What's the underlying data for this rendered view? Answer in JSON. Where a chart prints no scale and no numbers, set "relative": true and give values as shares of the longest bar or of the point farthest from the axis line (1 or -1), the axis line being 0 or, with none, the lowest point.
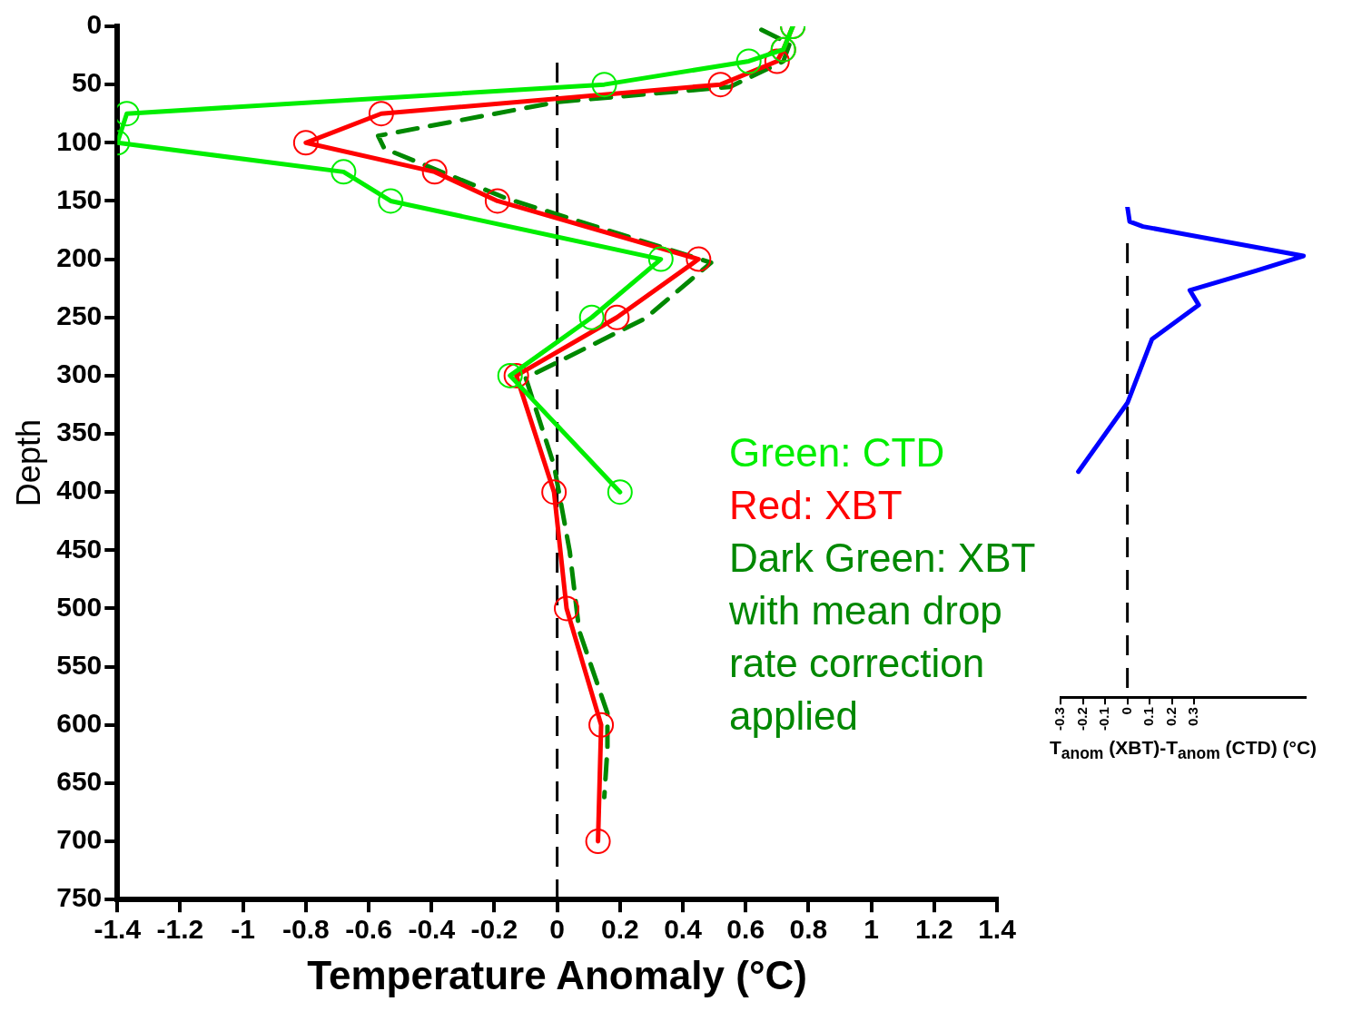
{
  "chart_data": [
    {
      "type": "line",
      "xlabel": "Temperature Anomaly (°C)",
      "ylabel": "Depth",
      "xlim": [
        -1.4,
        1.4
      ],
      "xticks": [
        -1.4,
        -1.2,
        -1,
        -0.8,
        -0.6,
        -0.4,
        -0.2,
        0,
        0.2,
        0.4,
        0.6,
        0.8,
        1,
        1.2,
        1.4
      ],
      "ylim": [
        750,
        0
      ],
      "yticks": [
        0,
        50,
        100,
        150,
        200,
        250,
        300,
        350,
        400,
        450,
        500,
        550,
        600,
        650,
        700,
        750
      ],
      "grid": false,
      "legend": false,
      "series": [
        {
          "color": "#00ee00",
          "marker": "circle",
          "line_style": "solid",
          "x": [
            0.75,
            0.72,
            0.61,
            0.15,
            -1.37,
            -1.4,
            -0.68,
            -0.53,
            0.33,
            0.11,
            -0.15,
            0.2
          ],
          "values": [
            0,
            20,
            30,
            50,
            75,
            100,
            125,
            150,
            200,
            250,
            300,
            400
          ]
        },
        {
          "color": "#ff0000",
          "marker": "circle",
          "line_style": "solid",
          "x": [
            0.75,
            0.72,
            0.7,
            0.52,
            -0.56,
            -0.8,
            -0.39,
            -0.19,
            0.45,
            0.19,
            -0.13,
            -0.01,
            0.03,
            0.14,
            0.13
          ],
          "values": [
            0,
            20,
            30,
            50,
            75,
            100,
            125,
            150,
            200,
            250,
            300,
            400,
            500,
            600,
            700
          ]
        },
        {
          "color": "#008800",
          "marker": "none",
          "line_style": "dashed",
          "x": [
            0.65,
            0.74,
            0.72,
            0.55,
            0.0,
            -0.57,
            -0.55,
            -0.16,
            0.49,
            0.28,
            -0.1,
            -0.01,
            0.04,
            0.07,
            0.16,
            0.16,
            0.15
          ],
          "values": [
            3,
            15,
            30,
            52,
            65,
            94,
            105,
            148,
            203,
            251,
            302,
            377,
            451,
            519,
            590,
            620,
            662
          ]
        }
      ],
      "ref_lines": [
        {
          "axis": "x",
          "value": 0,
          "line_style": "dashed",
          "color": "#000000"
        }
      ],
      "annotations": [
        "Green: CTD",
        "Red: XBT",
        "Dark Green: XBT with mean drop rate correction applied"
      ]
    },
    {
      "type": "line",
      "xlabel": "T$_{anom}$ (XBT)-T$_{anom}$ (CTD) (°C)",
      "relative": true,
      "tick_labels": "x",
      "xlim": [
        -0.3,
        0.8
      ],
      "xticks": [
        -0.3,
        -0.2,
        -0.1,
        0,
        0.1,
        0.2,
        0.3
      ],
      "grid": false,
      "legend": false,
      "series": [
        {
          "color": "#0000ff",
          "marker": "none",
          "line_style": "solid",
          "x": [
            0.0,
            0.01,
            0.07,
            0.79,
            0.58,
            0.28,
            0.32,
            0.11,
            0.0,
            -0.22
          ],
          "values": [
            1,
            0.97,
            0.96,
            0.9,
            0.87,
            0.83,
            0.8,
            0.73,
            0.6,
            0.46
          ]
        }
      ],
      "ref_lines": [
        {
          "axis": "x",
          "value": 0,
          "line_style": "dashed",
          "color": "#000000"
        }
      ]
    }
  ]
}
